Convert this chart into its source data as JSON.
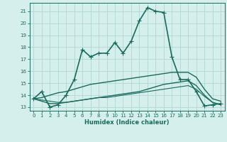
{
  "xlabel": "Humidex (Indice chaleur)",
  "ylabel": "",
  "xlim": [
    -0.5,
    23.5
  ],
  "ylim": [
    12.7,
    21.7
  ],
  "yticks": [
    13,
    14,
    15,
    16,
    17,
    18,
    19,
    20,
    21
  ],
  "xticks": [
    0,
    1,
    2,
    3,
    4,
    5,
    6,
    7,
    8,
    9,
    10,
    11,
    12,
    13,
    14,
    15,
    16,
    17,
    18,
    19,
    20,
    21,
    22,
    23
  ],
  "bg_color": "#d5efec",
  "grid_color": "#b0d8d4",
  "line_color": "#1a6b5e",
  "lines": [
    {
      "x": [
        0,
        1,
        2,
        3,
        4,
        5,
        6,
        7,
        8,
        9,
        10,
        11,
        12,
        13,
        14,
        15,
        16,
        17,
        18,
        19,
        20,
        21,
        22,
        23
      ],
      "y": [
        13.7,
        14.3,
        13.0,
        13.2,
        14.0,
        15.3,
        17.8,
        17.2,
        17.5,
        17.5,
        18.4,
        17.5,
        18.5,
        20.2,
        21.3,
        21.0,
        20.9,
        17.2,
        15.3,
        15.3,
        14.3,
        13.1,
        13.2,
        13.3
      ],
      "marker": "+",
      "linewidth": 1.2,
      "markersize": 4,
      "zorder": 3
    },
    {
      "x": [
        0,
        1,
        2,
        3,
        4,
        5,
        6,
        7,
        8,
        9,
        10,
        11,
        12,
        13,
        14,
        15,
        16,
        17,
        18,
        19,
        20,
        21,
        22,
        23
      ],
      "y": [
        13.7,
        13.8,
        14.0,
        14.2,
        14.3,
        14.5,
        14.7,
        14.9,
        15.0,
        15.1,
        15.2,
        15.3,
        15.4,
        15.5,
        15.6,
        15.7,
        15.8,
        15.9,
        15.9,
        15.9,
        15.5,
        14.5,
        13.7,
        13.5
      ],
      "marker": null,
      "linewidth": 1.0,
      "markersize": 0,
      "zorder": 2
    },
    {
      "x": [
        0,
        1,
        2,
        3,
        4,
        5,
        6,
        7,
        8,
        9,
        10,
        11,
        12,
        13,
        14,
        15,
        16,
        17,
        18,
        19,
        20,
        21,
        22,
        23
      ],
      "y": [
        13.7,
        13.5,
        13.3,
        13.3,
        13.4,
        13.5,
        13.6,
        13.7,
        13.8,
        13.9,
        14.0,
        14.1,
        14.2,
        14.3,
        14.5,
        14.7,
        14.9,
        15.0,
        15.1,
        15.2,
        14.8,
        14.0,
        13.4,
        13.2
      ],
      "marker": null,
      "linewidth": 1.0,
      "markersize": 0,
      "zorder": 2
    },
    {
      "x": [
        0,
        1,
        2,
        3,
        4,
        5,
        6,
        7,
        8,
        9,
        10,
        11,
        12,
        13,
        14,
        15,
        16,
        17,
        18,
        19,
        20,
        21,
        22,
        23
      ],
      "y": [
        13.7,
        13.6,
        13.5,
        13.4,
        13.4,
        13.5,
        13.6,
        13.7,
        13.8,
        13.8,
        13.9,
        14.0,
        14.1,
        14.2,
        14.3,
        14.4,
        14.5,
        14.6,
        14.7,
        14.8,
        14.5,
        13.9,
        13.4,
        13.2
      ],
      "marker": null,
      "linewidth": 0.8,
      "markersize": 0,
      "zorder": 1
    }
  ]
}
